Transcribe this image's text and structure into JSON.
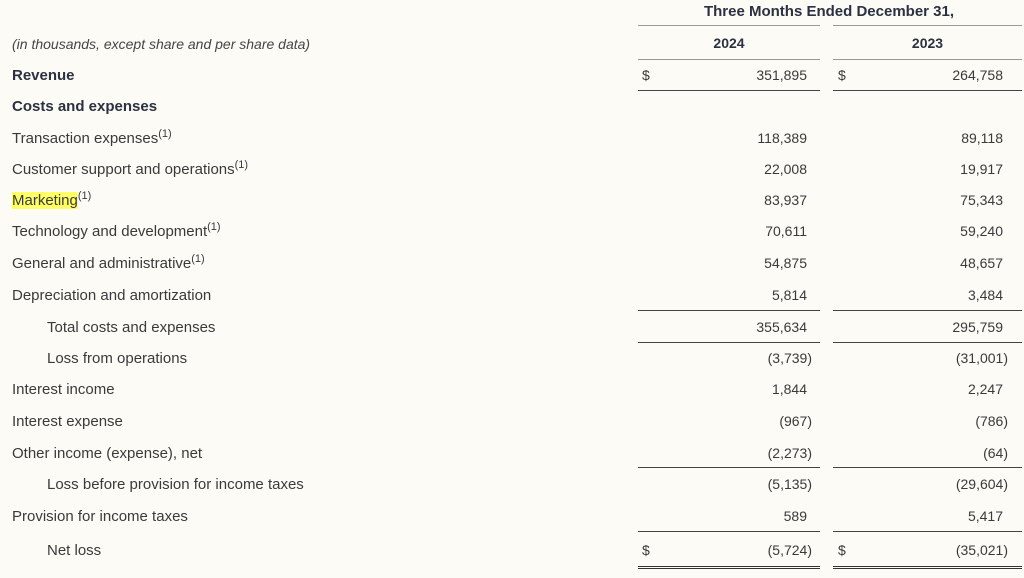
{
  "header": {
    "period": "Three Months Ended December 31,",
    "units_note": "(in thousands, except share and per share data)",
    "year1": "2024",
    "year2": "2023"
  },
  "currency_symbol": "$",
  "footnote_marker": "(1)",
  "rows": [
    {
      "label": "Revenue",
      "v2024": "351,895",
      "v2023": "264,758"
    },
    {
      "label": "Costs and expenses"
    },
    {
      "label": "Transaction expenses",
      "v2024": "118,389",
      "v2023": "89,118"
    },
    {
      "label": "Customer support and operations",
      "v2024": "22,008",
      "v2023": "19,917"
    },
    {
      "label": "Marketing",
      "v2024": "83,937",
      "v2023": "75,343"
    },
    {
      "label": "Technology and development",
      "v2024": "70,611",
      "v2023": "59,240"
    },
    {
      "label": "General and administrative",
      "v2024": "54,875",
      "v2023": "48,657"
    },
    {
      "label": "Depreciation and amortization",
      "v2024": "5,814",
      "v2023": "3,484"
    },
    {
      "label": "Total costs and expenses",
      "v2024": "355,634",
      "v2023": "295,759"
    },
    {
      "label": "Loss from operations",
      "v2024": "(3,739)",
      "v2023": "(31,001)"
    },
    {
      "label": "Interest income",
      "v2024": "1,844",
      "v2023": "2,247"
    },
    {
      "label": "Interest expense",
      "v2024": "(967)",
      "v2023": "(786)"
    },
    {
      "label": "Other income (expense), net",
      "v2024": "(2,273)",
      "v2023": "(64)"
    },
    {
      "label": "Loss before provision for income taxes",
      "v2024": "(5,135)",
      "v2023": "(29,604)"
    },
    {
      "label": "Provision for income taxes",
      "v2024": "589",
      "v2023": "5,417"
    },
    {
      "label": "Net loss",
      "v2024": "(5,724)",
      "v2023": "(35,021)"
    }
  ],
  "highlight_color": "#ffff66"
}
